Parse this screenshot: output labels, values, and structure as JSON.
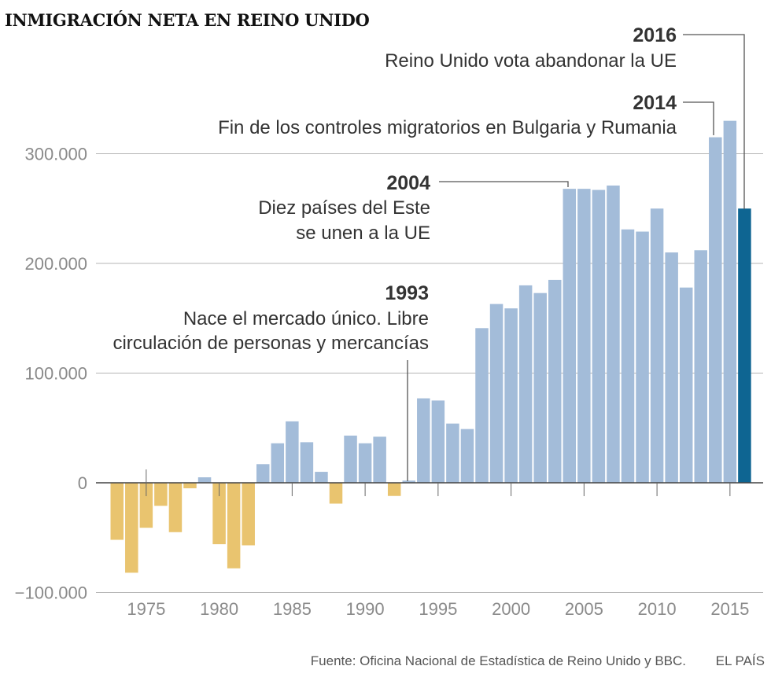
{
  "title": "INMIGRACIÓN NETA EN REINO UNIDO",
  "chart_data": {
    "type": "bar",
    "title": "INMIGRACIÓN NETA EN REINO UNIDO",
    "xlabel": "",
    "ylabel": "",
    "ylim": [
      -100000,
      340000
    ],
    "yticks": [
      {
        "value": 300000,
        "label": "300.000"
      },
      {
        "value": 200000,
        "label": "200.000"
      },
      {
        "value": 100000,
        "label": "100.000"
      },
      {
        "value": 0,
        "label": "0"
      },
      {
        "value": -100000,
        "label": "−100.000"
      }
    ],
    "xticks": [
      "1975",
      "1980",
      "1985",
      "1990",
      "1995",
      "2000",
      "2005",
      "2010",
      "2015"
    ],
    "years": [
      1973,
      1974,
      1975,
      1976,
      1977,
      1978,
      1979,
      1980,
      1981,
      1982,
      1983,
      1984,
      1985,
      1986,
      1987,
      1988,
      1989,
      1990,
      1991,
      1992,
      1993,
      1994,
      1995,
      1996,
      1997,
      1998,
      1999,
      2000,
      2001,
      2002,
      2003,
      2004,
      2005,
      2006,
      2007,
      2008,
      2009,
      2010,
      2011,
      2012,
      2013,
      2014,
      2015,
      2016
    ],
    "values": [
      -52000,
      -82000,
      -41000,
      -21000,
      -45000,
      -5000,
      5000,
      -56000,
      -78000,
      -57000,
      17000,
      36000,
      56000,
      37000,
      10000,
      -19000,
      43000,
      36000,
      42000,
      -12000,
      2000,
      77000,
      75000,
      54000,
      49000,
      141000,
      163000,
      159000,
      180000,
      173000,
      185000,
      268000,
      268000,
      267000,
      271000,
      231000,
      229000,
      250000,
      210000,
      178000,
      212000,
      315000,
      330000,
      250000
    ],
    "colors": {
      "negative": "#e9c46f",
      "positive": "#a3bcd9",
      "highlight": "#0e6592"
    },
    "highlight_year": 2016,
    "annotations": [
      {
        "year_label": "2016",
        "text": [
          "Reino Unido vota abandonar la UE"
        ]
      },
      {
        "year_label": "2014",
        "text": [
          "Fin de los controles migratorios en Bulgaria y Rumania"
        ]
      },
      {
        "year_label": "2004",
        "text": [
          "Diez países del Este",
          "se unen a la UE"
        ]
      },
      {
        "year_label": "1993",
        "text": [
          "Nace el mercado único. Libre",
          "circulación de personas y mercancías"
        ]
      }
    ]
  },
  "footer": {
    "source": "Fuente: Oficina Nacional de Estadística de Reino Unido y BBC.",
    "brand": "EL PAÍS"
  }
}
